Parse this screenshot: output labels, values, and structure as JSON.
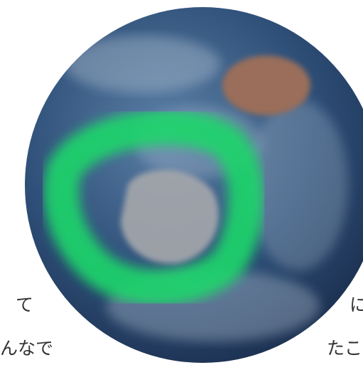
{
  "left_text": {
    "lines": [
      "て",
      "んなで"
    ]
  },
  "right_text": {
    "lines": [
      "に",
      "たこ"
    ]
  }
}
